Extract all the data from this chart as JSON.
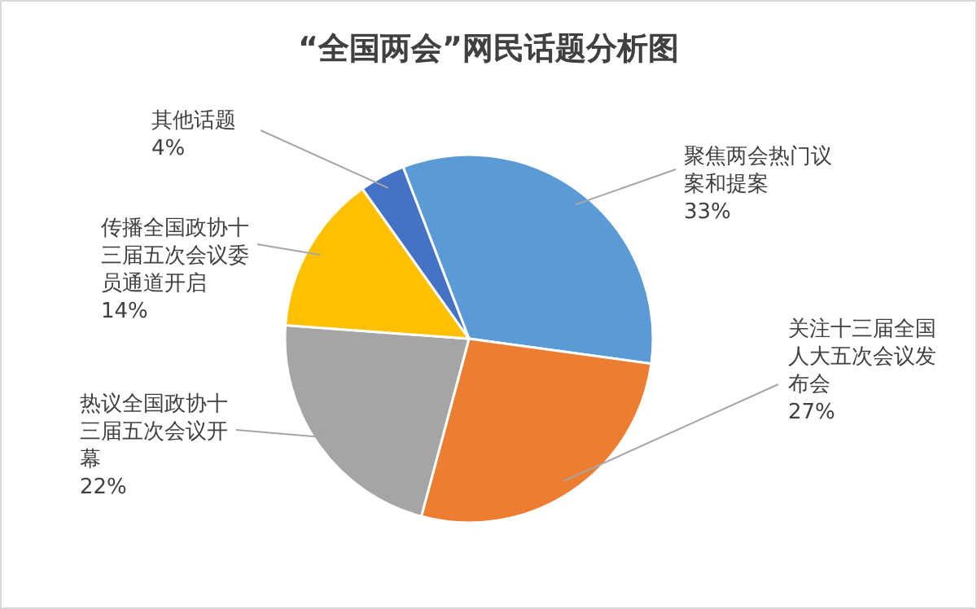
{
  "chart_data": {
    "type": "pie",
    "title": "“全国两会”网民话题分析图",
    "categories": [
      "聚焦两会热门议案和提案",
      "关注十三届全国人大五次会议发布会",
      "热议全国政协十三届五次会议开幕",
      "传播全国政协十三届五次会议委员通道开启",
      "其他话题"
    ],
    "values": [
      33,
      27,
      22,
      14,
      4
    ],
    "value_labels": [
      "33%",
      "27%",
      "22%",
      "14%",
      "4%"
    ],
    "colors": [
      "#5b9bd5",
      "#ed7d31",
      "#a5a5a5",
      "#ffc000",
      "#4472c4"
    ]
  }
}
